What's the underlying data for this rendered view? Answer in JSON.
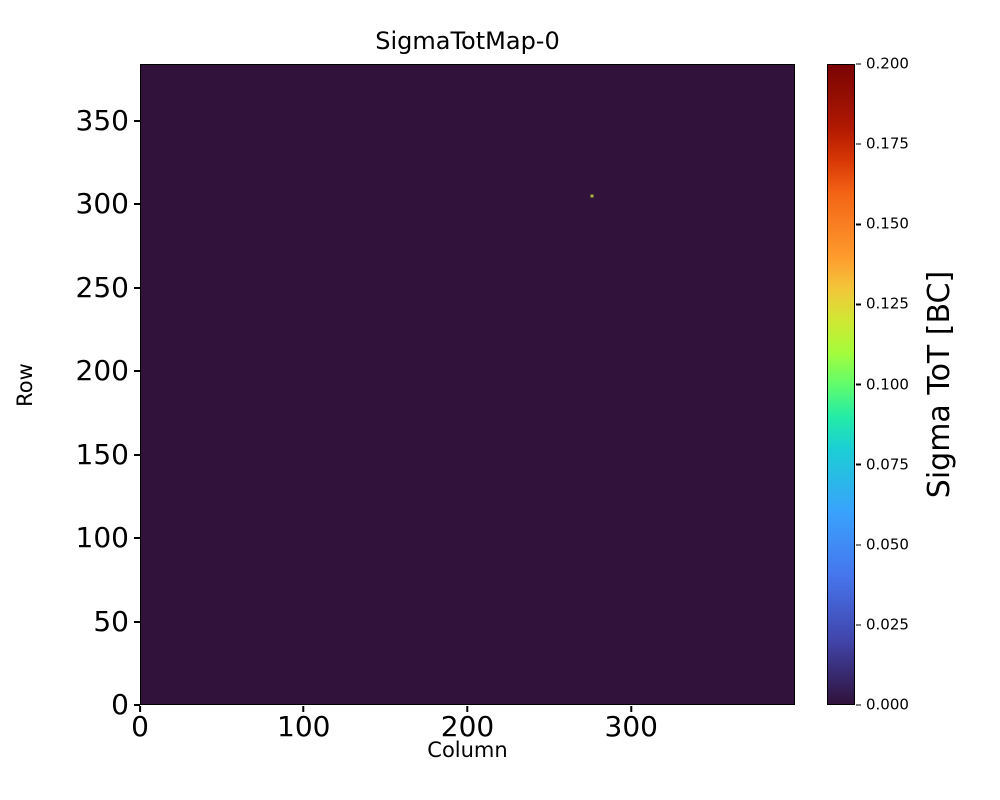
{
  "chart_data": {
    "type": "heatmap",
    "title": "SigmaTotMap-0",
    "xlabel": "Column",
    "ylabel": "Row",
    "xlim": [
      0,
      400
    ],
    "ylim": [
      0,
      384
    ],
    "x_ticks": [
      0,
      100,
      200,
      300
    ],
    "y_ticks": [
      0,
      50,
      100,
      150,
      200,
      250,
      300,
      350
    ],
    "grid": false,
    "background_value": 0.0,
    "colormap": "turbo",
    "colors": {
      "plot_background": "#30123b",
      "axis": "#000000",
      "figure_background": "#ffffff"
    },
    "colormap_stops": [
      {
        "pos": 0,
        "color": "#30123b"
      },
      {
        "pos": 10,
        "color": "#4145ab"
      },
      {
        "pos": 20,
        "color": "#4675ed"
      },
      {
        "pos": 30,
        "color": "#39a2fc"
      },
      {
        "pos": 40,
        "color": "#1bcfd4"
      },
      {
        "pos": 45,
        "color": "#24eca6"
      },
      {
        "pos": 50,
        "color": "#61fc6c"
      },
      {
        "pos": 55,
        "color": "#a4fc3b"
      },
      {
        "pos": 60,
        "color": "#d1e834"
      },
      {
        "pos": 65,
        "color": "#f3c63a"
      },
      {
        "pos": 70,
        "color": "#fe9b2d"
      },
      {
        "pos": 80,
        "color": "#f36315"
      },
      {
        "pos": 85,
        "color": "#d93806"
      },
      {
        "pos": 90,
        "color": "#b11901"
      },
      {
        "pos": 100,
        "color": "#7a0403"
      }
    ],
    "colorbar": {
      "label": "Sigma ToT [BC]",
      "min": 0.0,
      "max": 0.2,
      "ticks": [
        "0.000",
        "0.025",
        "0.050",
        "0.075",
        "0.100",
        "0.125",
        "0.150",
        "0.175",
        "0.200"
      ]
    },
    "hot_pixels": [
      {
        "column": 276,
        "row": 305,
        "approx_value": 0.1,
        "color": "#a8b23c"
      }
    ]
  }
}
